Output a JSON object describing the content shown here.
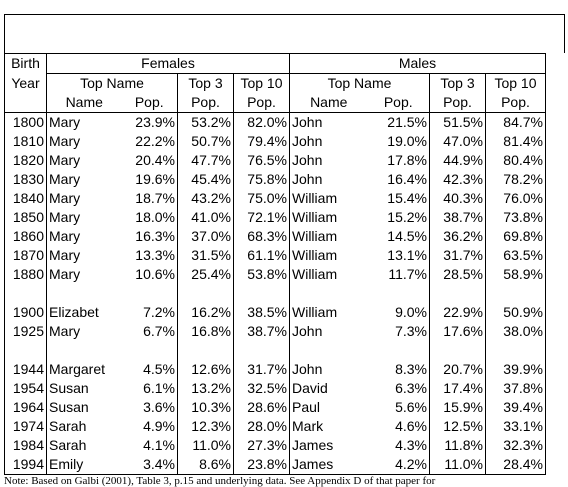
{
  "headers": {
    "birth_top": "Birth",
    "birth_bottom": "Year",
    "females": "Females",
    "males": "Males",
    "top_name": "Top Name",
    "top3": "Top 3",
    "top10": "Top 10",
    "name": "Name",
    "pop": "Pop."
  },
  "rows": [
    {
      "year": "1800",
      "fname": "Mary",
      "fpop": "23.9%",
      "ftop3": "53.2%",
      "ftop10": "82.0%",
      "mname": "John",
      "mpop": "21.5%",
      "mtop3": "51.5%",
      "mtop10": "84.7%"
    },
    {
      "year": "1810",
      "fname": "Mary",
      "fpop": "22.2%",
      "ftop3": "50.7%",
      "ftop10": "79.4%",
      "mname": "John",
      "mpop": "19.0%",
      "mtop3": "47.0%",
      "mtop10": "81.4%"
    },
    {
      "year": "1820",
      "fname": "Mary",
      "fpop": "20.4%",
      "ftop3": "47.7%",
      "ftop10": "76.5%",
      "mname": "John",
      "mpop": "17.8%",
      "mtop3": "44.9%",
      "mtop10": "80.4%"
    },
    {
      "year": "1830",
      "fname": "Mary",
      "fpop": "19.6%",
      "ftop3": "45.4%",
      "ftop10": "75.8%",
      "mname": "John",
      "mpop": "16.4%",
      "mtop3": "42.3%",
      "mtop10": "78.2%"
    },
    {
      "year": "1840",
      "fname": "Mary",
      "fpop": "18.7%",
      "ftop3": "43.2%",
      "ftop10": "75.0%",
      "mname": "William",
      "mpop": "15.4%",
      "mtop3": "40.3%",
      "mtop10": "76.0%"
    },
    {
      "year": "1850",
      "fname": "Mary",
      "fpop": "18.0%",
      "ftop3": "41.0%",
      "ftop10": "72.1%",
      "mname": "William",
      "mpop": "15.2%",
      "mtop3": "38.7%",
      "mtop10": "73.8%"
    },
    {
      "year": "1860",
      "fname": "Mary",
      "fpop": "16.3%",
      "ftop3": "37.0%",
      "ftop10": "68.3%",
      "mname": "William",
      "mpop": "14.5%",
      "mtop3": "36.2%",
      "mtop10": "69.8%"
    },
    {
      "year": "1870",
      "fname": "Mary",
      "fpop": "13.3%",
      "ftop3": "31.5%",
      "ftop10": "61.1%",
      "mname": "William",
      "mpop": "13.1%",
      "mtop3": "31.7%",
      "mtop10": "63.5%"
    },
    {
      "year": "1880",
      "fname": "Mary",
      "fpop": "10.6%",
      "ftop3": "25.4%",
      "ftop10": "53.8%",
      "mname": "William",
      "mpop": "11.7%",
      "mtop3": "28.5%",
      "mtop10": "58.9%"
    },
    {
      "gap": true
    },
    {
      "year": "1900",
      "fname": "Elizabet",
      "fpop": "7.2%",
      "ftop3": "16.2%",
      "ftop10": "38.5%",
      "mname": "William",
      "mpop": "9.0%",
      "mtop3": "22.9%",
      "mtop10": "50.9%"
    },
    {
      "year": "1925",
      "fname": "Mary",
      "fpop": "6.7%",
      "ftop3": "16.8%",
      "ftop10": "38.7%",
      "mname": "John",
      "mpop": "7.3%",
      "mtop3": "17.6%",
      "mtop10": "38.0%"
    },
    {
      "gap": true
    },
    {
      "year": "1944",
      "fname": "Margaret",
      "fpop": "4.5%",
      "ftop3": "12.6%",
      "ftop10": "31.7%",
      "mname": "John",
      "mpop": "8.3%",
      "mtop3": "20.7%",
      "mtop10": "39.9%"
    },
    {
      "year": "1954",
      "fname": "Susan",
      "fpop": "6.1%",
      "ftop3": "13.2%",
      "ftop10": "32.5%",
      "mname": "David",
      "mpop": "6.3%",
      "mtop3": "17.4%",
      "mtop10": "37.8%"
    },
    {
      "year": "1964",
      "fname": "Susan",
      "fpop": "3.6%",
      "ftop3": "10.3%",
      "ftop10": "28.6%",
      "mname": "Paul",
      "mpop": "5.6%",
      "mtop3": "15.9%",
      "mtop10": "39.4%"
    },
    {
      "year": "1974",
      "fname": "Sarah",
      "fpop": "4.9%",
      "ftop3": "12.3%",
      "ftop10": "28.0%",
      "mname": "Mark",
      "mpop": "4.6%",
      "mtop3": "12.5%",
      "mtop10": "33.1%"
    },
    {
      "year": "1984",
      "fname": "Sarah",
      "fpop": "4.1%",
      "ftop3": "11.0%",
      "ftop10": "27.3%",
      "mname": "James",
      "mpop": "4.3%",
      "mtop3": "11.8%",
      "mtop10": "32.3%"
    },
    {
      "year": "1994",
      "fname": "Emily",
      "fpop": "3.4%",
      "ftop3": "8.6%",
      "ftop10": "23.8%",
      "mname": "James",
      "mpop": "4.2%",
      "mtop3": "11.0%",
      "mtop10": "28.4%"
    }
  ],
  "note": "Note: Based on Galbi (2001), Table 3, p.15 and underlying data. See Appendix D of that paper for"
}
